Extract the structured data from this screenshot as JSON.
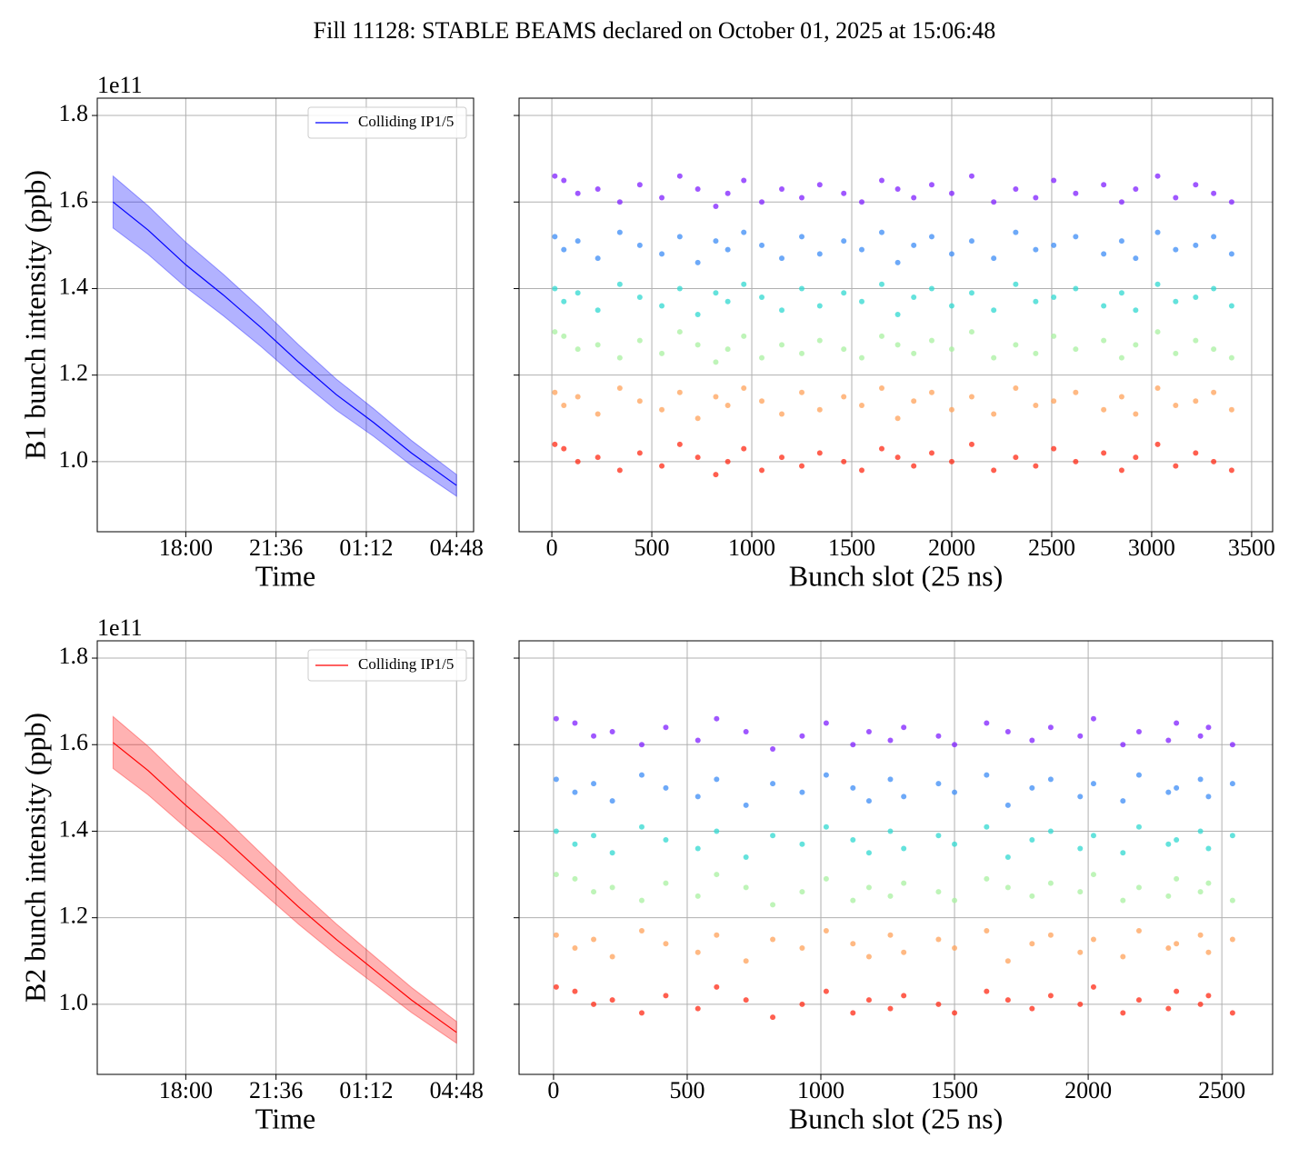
{
  "suptitle": "Fill 11128: STABLE BEAMS declared on October 01, 2025 at 15:06:48",
  "chart_data": [
    {
      "type": "line",
      "xlabel": "Time",
      "ylabel": "B1 bunch intensity (ppb)",
      "y_offset_label": "1e11",
      "x": [
        15.1,
        16.5,
        18.0,
        19.5,
        21.0,
        22.5,
        24.0,
        25.5,
        27.0,
        28.8
      ],
      "series": [
        {
          "name": "Colliding IP1/5",
          "color": "#0000ff",
          "band_color": "#0000ff",
          "values": [
            1.6,
            1.535,
            1.455,
            1.385,
            1.31,
            1.23,
            1.155,
            1.09,
            1.02,
            0.945
          ],
          "upper": [
            1.66,
            1.591,
            1.507,
            1.433,
            1.354,
            1.27,
            1.191,
            1.122,
            1.049,
            0.97
          ],
          "lower": [
            1.54,
            1.479,
            1.403,
            1.337,
            1.266,
            1.19,
            1.119,
            1.058,
            0.991,
            0.92
          ]
        }
      ],
      "xlim": [
        14.47,
        29.48
      ],
      "xticks": [
        {
          "value": 18,
          "label": "18:00"
        },
        {
          "value": 21.6,
          "label": "21:36"
        },
        {
          "value": 25.2,
          "label": "01:12"
        },
        {
          "value": 28.8,
          "label": "04:48"
        }
      ],
      "ylim": [
        0.838,
        1.84
      ],
      "yticks": [
        {
          "value": 1.0,
          "label": "1.0"
        },
        1.2,
        1.4,
        1.6,
        1.8
      ],
      "grid": true,
      "legend": "upper right"
    },
    {
      "type": "scatter",
      "xlabel": "Bunch slot (25 ns)",
      "show_ytick_labels": false,
      "x": [
        15,
        60,
        130,
        230,
        340,
        440,
        550,
        640,
        730,
        820,
        880,
        960,
        1050,
        1150,
        1250,
        1340,
        1460,
        1550,
        1650,
        1730,
        1810,
        1900,
        2000,
        2100,
        2210,
        2320,
        2420,
        2510,
        2620,
        2760,
        2850,
        2920,
        3030,
        3120,
        3220,
        3310,
        3400
      ],
      "series": [
        {
          "color": "#7f1fff",
          "values": [
            1.66,
            1.65,
            1.62,
            1.63,
            1.6,
            1.64,
            1.61,
            1.66,
            1.63,
            1.59,
            1.62,
            1.65,
            1.6,
            1.63,
            1.61,
            1.64,
            1.62,
            1.6,
            1.65,
            1.63,
            1.61,
            1.64,
            1.62,
            1.66,
            1.6,
            1.63,
            1.61,
            1.65,
            1.62,
            1.64,
            1.6,
            1.63,
            1.66,
            1.61,
            1.64,
            1.62,
            1.6
          ]
        },
        {
          "color": "#3c8cf5",
          "values": [
            1.52,
            1.49,
            1.51,
            1.47,
            1.53,
            1.5,
            1.48,
            1.52,
            1.46,
            1.51,
            1.49,
            1.53,
            1.5,
            1.47,
            1.52,
            1.48,
            1.51,
            1.49,
            1.53,
            1.46,
            1.5,
            1.52,
            1.48,
            1.51,
            1.47,
            1.53,
            1.49,
            1.5,
            1.52,
            1.48,
            1.51,
            1.47,
            1.53,
            1.49,
            1.5,
            1.52,
            1.48
          ]
        },
        {
          "color": "#30d8d0",
          "values": [
            1.4,
            1.37,
            1.39,
            1.35,
            1.41,
            1.38,
            1.36,
            1.4,
            1.34,
            1.39,
            1.37,
            1.41,
            1.38,
            1.35,
            1.4,
            1.36,
            1.39,
            1.37,
            1.41,
            1.34,
            1.38,
            1.4,
            1.36,
            1.39,
            1.35,
            1.41,
            1.37,
            1.38,
            1.4,
            1.36,
            1.39,
            1.35,
            1.41,
            1.37,
            1.38,
            1.4,
            1.36
          ]
        },
        {
          "color": "#a8f0a0",
          "values": [
            1.3,
            1.29,
            1.26,
            1.27,
            1.24,
            1.28,
            1.25,
            1.3,
            1.27,
            1.23,
            1.26,
            1.29,
            1.24,
            1.27,
            1.25,
            1.28,
            1.26,
            1.24,
            1.29,
            1.27,
            1.25,
            1.28,
            1.26,
            1.3,
            1.24,
            1.27,
            1.25,
            1.29,
            1.26,
            1.28,
            1.24,
            1.27,
            1.3,
            1.25,
            1.28,
            1.26,
            1.24
          ]
        },
        {
          "color": "#ffa25a",
          "values": [
            1.16,
            1.13,
            1.15,
            1.11,
            1.17,
            1.14,
            1.12,
            1.16,
            1.1,
            1.15,
            1.13,
            1.17,
            1.14,
            1.11,
            1.16,
            1.12,
            1.15,
            1.13,
            1.17,
            1.1,
            1.14,
            1.16,
            1.12,
            1.15,
            1.11,
            1.17,
            1.13,
            1.14,
            1.16,
            1.12,
            1.15,
            1.11,
            1.17,
            1.13,
            1.14,
            1.16,
            1.12
          ]
        },
        {
          "color": "#ff2a14",
          "values": [
            1.04,
            1.03,
            1.0,
            1.01,
            0.98,
            1.02,
            0.99,
            1.04,
            1.01,
            0.97,
            1.0,
            1.03,
            0.98,
            1.01,
            0.99,
            1.02,
            1.0,
            0.98,
            1.03,
            1.01,
            0.99,
            1.02,
            1.0,
            1.04,
            0.98,
            1.01,
            0.99,
            1.03,
            1.0,
            1.02,
            0.98,
            1.01,
            1.04,
            0.99,
            1.02,
            1.0,
            0.98
          ]
        }
      ],
      "xlim": [
        -164,
        3605
      ],
      "xticks": [
        0,
        500,
        1000,
        1500,
        2000,
        2500,
        3000,
        3500
      ],
      "ylim": [
        0.838,
        1.84
      ],
      "yticks": [
        1,
        1.2,
        1.4,
        1.6,
        1.8
      ],
      "grid": true
    },
    {
      "type": "line",
      "xlabel": "Time",
      "ylabel": "B2 bunch intensity (ppb)",
      "y_offset_label": "1e11",
      "x": [
        15.1,
        16.5,
        18.0,
        19.5,
        21.0,
        22.5,
        24.0,
        25.5,
        27.0,
        28.8
      ],
      "series": [
        {
          "name": "Colliding IP1/5",
          "color": "#ff0000",
          "band_color": "#ff0000",
          "values": [
            1.605,
            1.54,
            1.46,
            1.385,
            1.305,
            1.225,
            1.15,
            1.08,
            1.01,
            0.935
          ],
          "upper": [
            1.665,
            1.596,
            1.512,
            1.433,
            1.349,
            1.265,
            1.186,
            1.112,
            1.039,
            0.96
          ],
          "lower": [
            1.545,
            1.484,
            1.408,
            1.337,
            1.261,
            1.185,
            1.114,
            1.048,
            0.981,
            0.91
          ]
        }
      ],
      "xlim": [
        14.47,
        29.48
      ],
      "xticks": [
        {
          "value": 18,
          "label": "18:00"
        },
        {
          "value": 21.6,
          "label": "21:36"
        },
        {
          "value": 25.2,
          "label": "01:12"
        },
        {
          "value": 28.8,
          "label": "04:48"
        }
      ],
      "ylim": [
        0.838,
        1.84
      ],
      "yticks": [
        {
          "value": 1.0,
          "label": "1.0"
        },
        1.2,
        1.4,
        1.6,
        1.8
      ],
      "grid": true,
      "legend": "upper right"
    },
    {
      "type": "scatter",
      "xlabel": "Bunch slot (25 ns)",
      "show_ytick_labels": false,
      "x": [
        10,
        80,
        150,
        220,
        330,
        420,
        540,
        610,
        720,
        820,
        930,
        1020,
        1120,
        1180,
        1260,
        1310,
        1440,
        1500,
        1620,
        1700,
        1790,
        1860,
        1970,
        2020,
        2130,
        2190,
        2300,
        2330,
        2420,
        2450,
        2540
      ],
      "series": [
        {
          "color": "#7f1fff",
          "values": [
            1.66,
            1.65,
            1.62,
            1.63,
            1.6,
            1.64,
            1.61,
            1.66,
            1.63,
            1.59,
            1.62,
            1.65,
            1.6,
            1.63,
            1.61,
            1.64,
            1.62,
            1.6,
            1.65,
            1.63,
            1.61,
            1.64,
            1.62,
            1.66,
            1.6,
            1.63,
            1.61,
            1.65,
            1.62,
            1.64,
            1.6
          ]
        },
        {
          "color": "#3c8cf5",
          "values": [
            1.52,
            1.49,
            1.51,
            1.47,
            1.53,
            1.5,
            1.48,
            1.52,
            1.46,
            1.51,
            1.49,
            1.53,
            1.5,
            1.47,
            1.52,
            1.48,
            1.51,
            1.49,
            1.53,
            1.46,
            1.5,
            1.52,
            1.48,
            1.51,
            1.47,
            1.53,
            1.49,
            1.5,
            1.52,
            1.48,
            1.51
          ]
        },
        {
          "color": "#30d8d0",
          "values": [
            1.4,
            1.37,
            1.39,
            1.35,
            1.41,
            1.38,
            1.36,
            1.4,
            1.34,
            1.39,
            1.37,
            1.41,
            1.38,
            1.35,
            1.4,
            1.36,
            1.39,
            1.37,
            1.41,
            1.34,
            1.38,
            1.4,
            1.36,
            1.39,
            1.35,
            1.41,
            1.37,
            1.38,
            1.4,
            1.36,
            1.39
          ]
        },
        {
          "color": "#a8f0a0",
          "values": [
            1.3,
            1.29,
            1.26,
            1.27,
            1.24,
            1.28,
            1.25,
            1.3,
            1.27,
            1.23,
            1.26,
            1.29,
            1.24,
            1.27,
            1.25,
            1.28,
            1.26,
            1.24,
            1.29,
            1.27,
            1.25,
            1.28,
            1.26,
            1.3,
            1.24,
            1.27,
            1.25,
            1.29,
            1.26,
            1.28,
            1.24
          ]
        },
        {
          "color": "#ffa25a",
          "values": [
            1.16,
            1.13,
            1.15,
            1.11,
            1.17,
            1.14,
            1.12,
            1.16,
            1.1,
            1.15,
            1.13,
            1.17,
            1.14,
            1.11,
            1.16,
            1.12,
            1.15,
            1.13,
            1.17,
            1.1,
            1.14,
            1.16,
            1.12,
            1.15,
            1.11,
            1.17,
            1.13,
            1.14,
            1.16,
            1.12,
            1.15
          ]
        },
        {
          "color": "#ff2a14",
          "values": [
            1.04,
            1.03,
            1.0,
            1.01,
            0.98,
            1.02,
            0.99,
            1.04,
            1.01,
            0.97,
            1.0,
            1.03,
            0.98,
            1.01,
            0.99,
            1.02,
            1.0,
            0.98,
            1.03,
            1.01,
            0.99,
            1.02,
            1.0,
            1.04,
            0.98,
            1.01,
            0.99,
            1.03,
            1.0,
            1.02,
            0.98
          ]
        }
      ],
      "xlim": [
        -129,
        2690
      ],
      "xticks": [
        0,
        500,
        1000,
        1500,
        2000,
        2500
      ],
      "ylim": [
        0.838,
        1.84
      ],
      "yticks": [
        1,
        1.2,
        1.4,
        1.6,
        1.8
      ],
      "grid": true
    }
  ]
}
